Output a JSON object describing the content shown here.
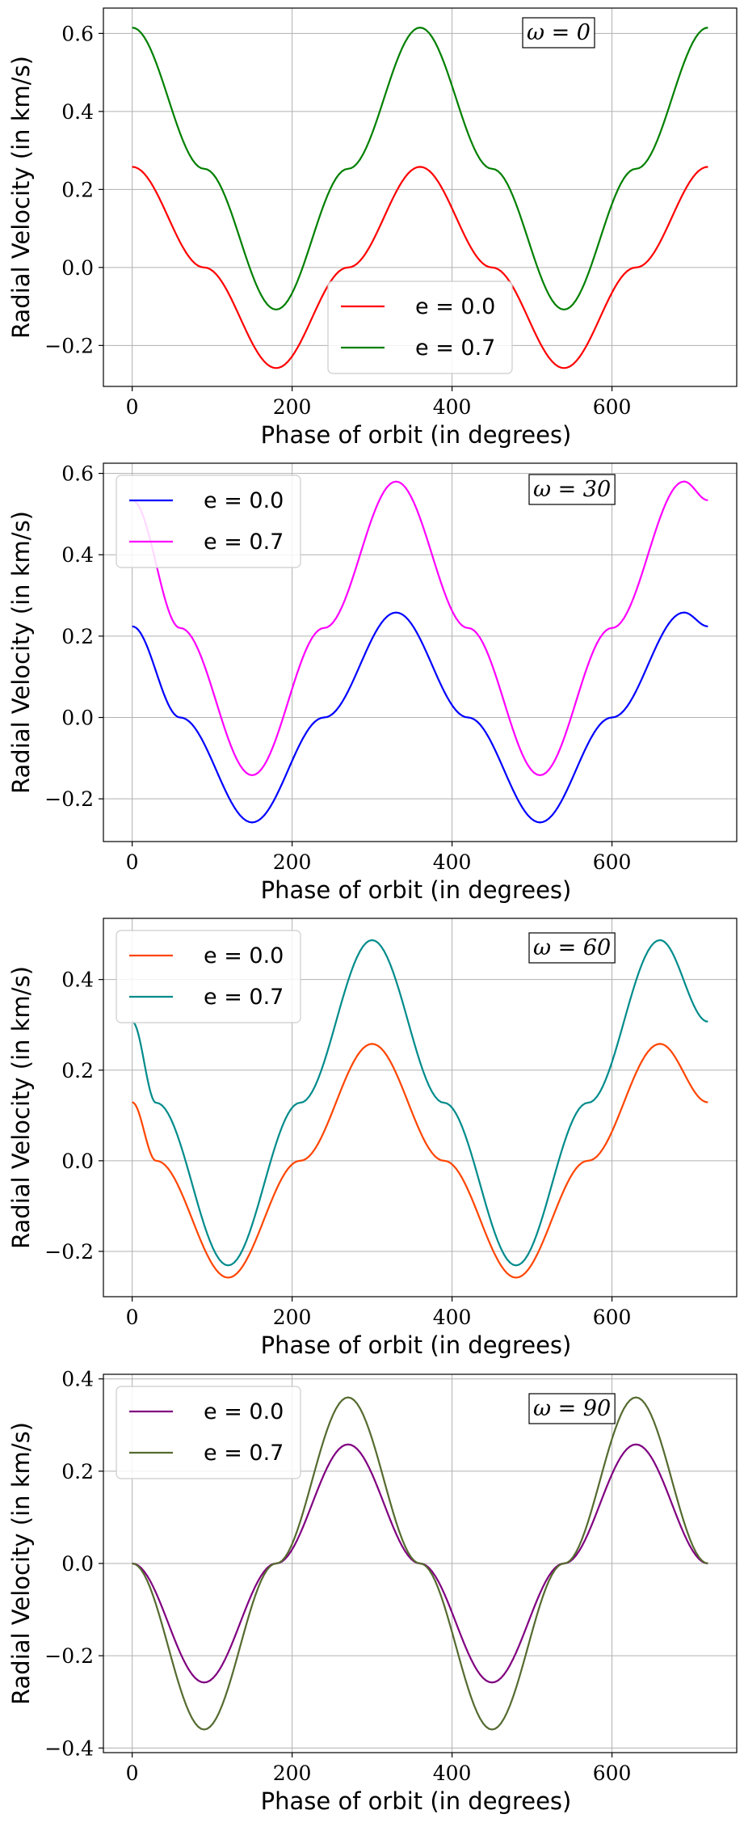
{
  "chart_data": [
    {
      "type": "line",
      "annotation": "ω = 0",
      "xlabel": "Phase of orbit (in degrees)",
      "ylabel": "Radial Velocity (in km/s)",
      "xlim": [
        -36,
        756
      ],
      "ylim": [
        -0.305,
        0.665
      ],
      "xticks": [
        0,
        200,
        400,
        600
      ],
      "yticks": [
        -0.2,
        0.0,
        0.2,
        0.4,
        0.6
      ],
      "ytick_labels": [
        "−0.2",
        "0.0",
        "0.2",
        "0.4",
        "0.6"
      ],
      "grid": true,
      "legend_position": "lower-center",
      "x": [
        0,
        90,
        180,
        270,
        360,
        450,
        540,
        630,
        720
      ],
      "series": [
        {
          "name": "e = 0.0",
          "color": "#ff0000",
          "values": [
            0.258,
            0.0,
            -0.258,
            0.0,
            0.258,
            0.0,
            -0.258,
            0.0,
            0.258
          ]
        },
        {
          "name": "e = 0.7",
          "color": "#008000",
          "values": [
            0.615,
            0.253,
            -0.108,
            0.253,
            0.615,
            0.253,
            -0.108,
            0.253,
            0.615
          ]
        }
      ]
    },
    {
      "type": "line",
      "annotation": "ω = 30",
      "xlabel": "Phase of orbit (in degrees)",
      "ylabel": "Radial Velocity (in km/s)",
      "xlim": [
        -36,
        756
      ],
      "ylim": [
        -0.305,
        0.625
      ],
      "xticks": [
        0,
        200,
        400,
        600
      ],
      "yticks": [
        -0.2,
        0.0,
        0.2,
        0.4,
        0.6
      ],
      "ytick_labels": [
        "−0.2",
        "0.0",
        "0.2",
        "0.4",
        "0.6"
      ],
      "grid": true,
      "legend_position": "upper-left",
      "x": [
        0,
        60,
        150,
        240,
        330,
        420,
        510,
        600,
        690,
        720
      ],
      "series": [
        {
          "name": "e = 0.0",
          "color": "#0000ff",
          "values": [
            0.224,
            0.0,
            -0.258,
            0.0,
            0.258,
            0.0,
            -0.258,
            0.0,
            0.258,
            0.224
          ]
        },
        {
          "name": "e = 0.7",
          "color": "#ff00ff",
          "values": [
            0.534,
            0.22,
            -0.142,
            0.22,
            0.58,
            0.22,
            -0.142,
            0.22,
            0.58,
            0.534
          ]
        }
      ]
    },
    {
      "type": "line",
      "annotation": "ω = 60",
      "xlabel": "Phase of orbit (in degrees)",
      "ylabel": "Radial Velocity (in km/s)",
      "xlim": [
        -36,
        756
      ],
      "ylim": [
        -0.3,
        0.535
      ],
      "xticks": [
        0,
        200,
        400,
        600
      ],
      "yticks": [
        -0.2,
        0.0,
        0.2,
        0.4
      ],
      "ytick_labels": [
        "−0.2",
        "0.0",
        "0.2",
        "0.4"
      ],
      "grid": true,
      "legend_position": "upper-left",
      "x": [
        0,
        30,
        120,
        210,
        300,
        390,
        480,
        570,
        660,
        720
      ],
      "series": [
        {
          "name": "e = 0.0",
          "color": "#ff4500",
          "values": [
            0.129,
            0.0,
            -0.258,
            0.0,
            0.258,
            0.0,
            -0.258,
            0.0,
            0.258,
            0.129
          ]
        },
        {
          "name": "e = 0.7",
          "color": "#008b8b",
          "values": [
            0.307,
            0.128,
            -0.231,
            0.128,
            0.487,
            0.128,
            -0.231,
            0.128,
            0.487,
            0.307
          ]
        }
      ]
    },
    {
      "type": "line",
      "annotation": "ω = 90",
      "xlabel": "Phase of orbit (in degrees)",
      "ylabel": "Radial Velocity (in km/s)",
      "xlim": [
        -36,
        756
      ],
      "ylim": [
        -0.41,
        0.41
      ],
      "xticks": [
        0,
        200,
        400,
        600
      ],
      "yticks": [
        -0.4,
        -0.2,
        0.0,
        0.2,
        0.4
      ],
      "ytick_labels": [
        "−0.4",
        "−0.2",
        "0.0",
        "0.2",
        "0.4"
      ],
      "grid": true,
      "legend_position": "upper-left",
      "x": [
        0,
        90,
        180,
        270,
        360,
        450,
        540,
        630,
        720
      ],
      "series": [
        {
          "name": "e = 0.0",
          "color": "#800080",
          "values": [
            0.0,
            -0.258,
            0.0,
            0.258,
            0.0,
            -0.258,
            0.0,
            0.258,
            0.0
          ]
        },
        {
          "name": "e = 0.7",
          "color": "#556b2f",
          "values": [
            0.0,
            -0.36,
            0.0,
            0.36,
            0.0,
            -0.36,
            0.0,
            0.36,
            0.0
          ]
        }
      ]
    }
  ]
}
